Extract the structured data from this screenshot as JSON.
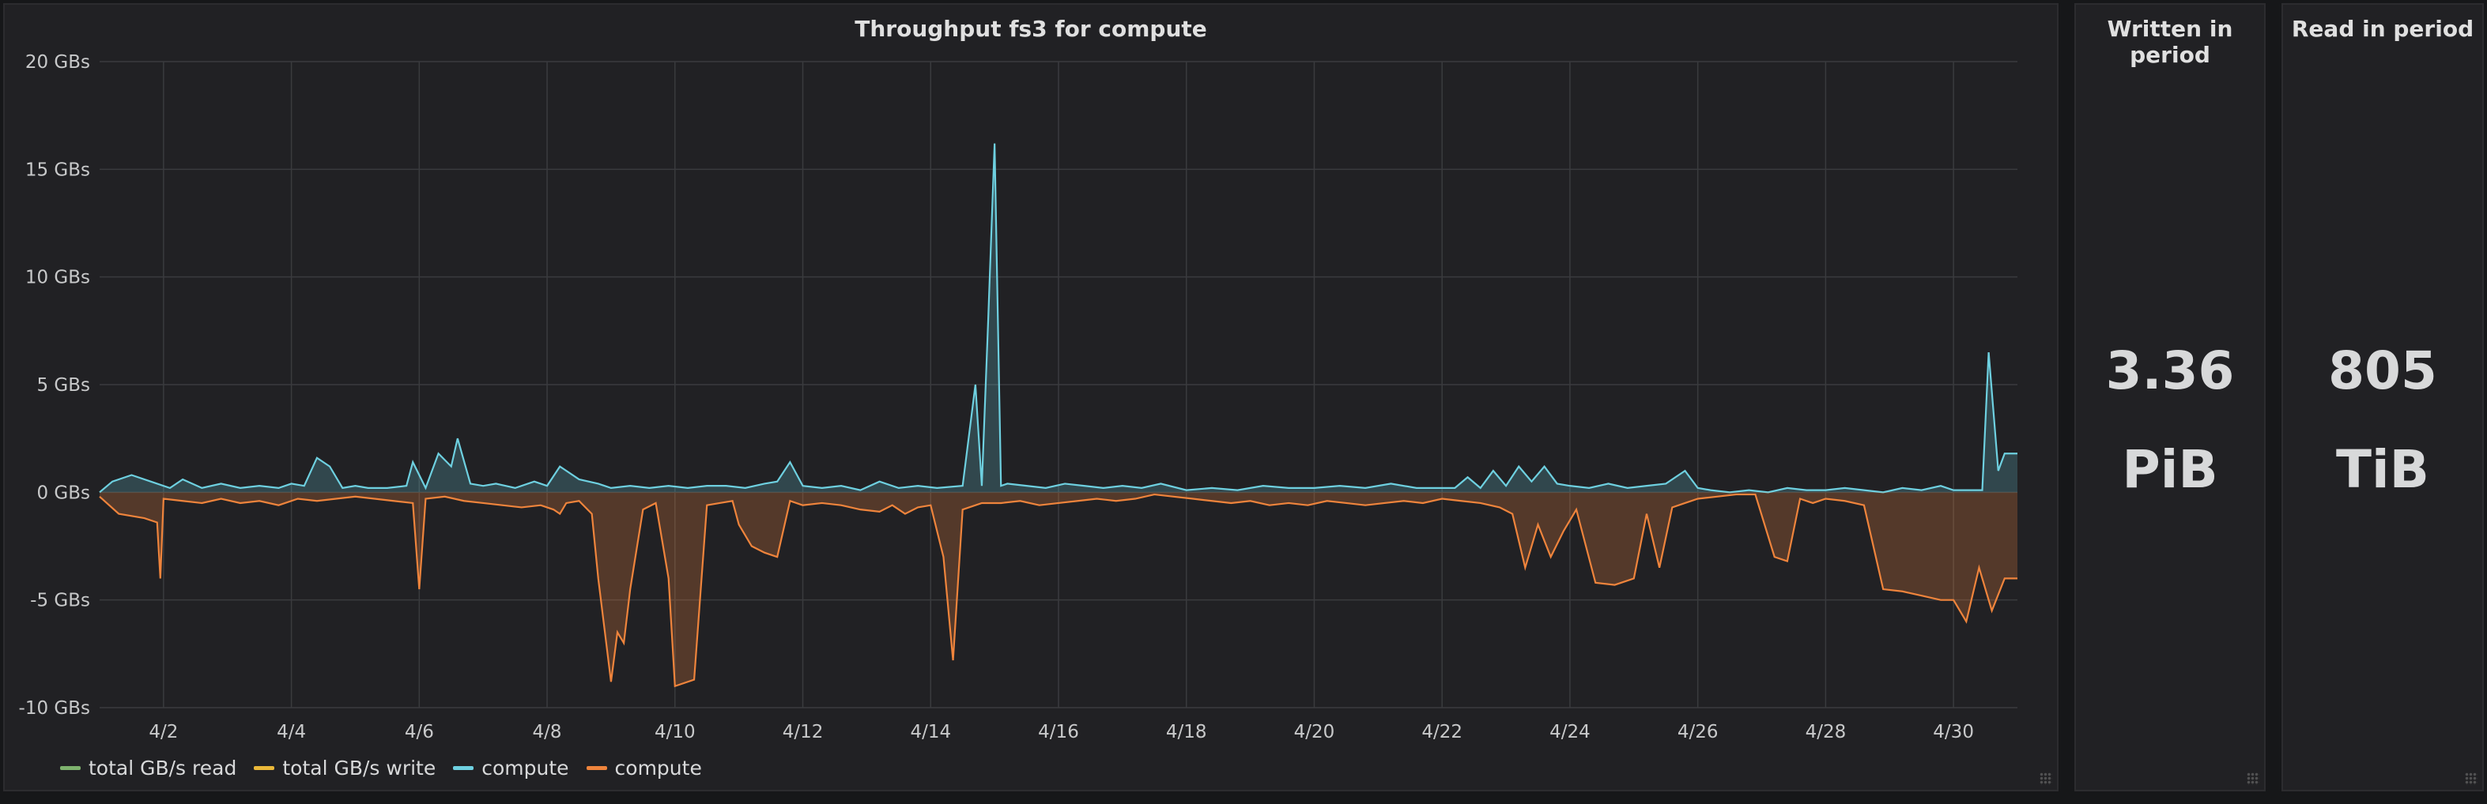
{
  "graph": {
    "title": "Throughput fs3 for compute"
  },
  "written": {
    "title": "Written in period",
    "value": "3.36",
    "unit": "PiB"
  },
  "read": {
    "title": "Read in period",
    "value": "805",
    "unit": "TiB"
  },
  "legend": [
    {
      "label": "total GB/s read",
      "color": "#7eb26d"
    },
    {
      "label": "total GB/s write",
      "color": "#eab839"
    },
    {
      "label": "compute",
      "color": "#6ed0e0"
    },
    {
      "label": "compute",
      "color": "#ef843c"
    }
  ],
  "chart_data": {
    "type": "area",
    "title": "Throughput fs3 for compute",
    "xlabel": "",
    "ylabel": "",
    "unit": "GBs",
    "xlim": [
      1,
      31
    ],
    "ylim": [
      -10,
      20
    ],
    "y_ticks": [
      -10,
      -5,
      0,
      5,
      10,
      15,
      20
    ],
    "y_tick_labels": [
      "-10 GBs",
      "-5 GBs",
      "0 GBs",
      "5 GBs",
      "10 GBs",
      "15 GBs",
      "20 GBs"
    ],
    "x_ticks": [
      2,
      4,
      6,
      8,
      10,
      12,
      14,
      16,
      18,
      20,
      22,
      24,
      26,
      28,
      30
    ],
    "x_tick_labels": [
      "4/2",
      "4/4",
      "4/6",
      "4/8",
      "4/10",
      "4/12",
      "4/14",
      "4/16",
      "4/18",
      "4/20",
      "4/22",
      "4/24",
      "4/26",
      "4/28",
      "4/30"
    ],
    "grid": true,
    "legend_position": "bottom-left",
    "series": [
      {
        "name": "compute",
        "color": "#6ed0e0",
        "x": [
          1.0,
          1.2,
          1.5,
          1.8,
          2.1,
          2.3,
          2.6,
          2.9,
          3.2,
          3.5,
          3.8,
          4.0,
          4.2,
          4.4,
          4.6,
          4.8,
          5.0,
          5.2,
          5.5,
          5.8,
          5.9,
          6.1,
          6.3,
          6.5,
          6.6,
          6.8,
          7.0,
          7.2,
          7.5,
          7.8,
          8.0,
          8.2,
          8.5,
          8.8,
          9.0,
          9.3,
          9.6,
          9.9,
          10.2,
          10.5,
          10.8,
          11.1,
          11.4,
          11.6,
          11.8,
          12.0,
          12.3,
          12.6,
          12.9,
          13.2,
          13.5,
          13.8,
          14.1,
          14.5,
          14.7,
          14.8,
          14.9,
          15.0,
          15.1,
          15.2,
          15.5,
          15.8,
          16.1,
          16.4,
          16.7,
          17.0,
          17.3,
          17.6,
          18.0,
          18.4,
          18.8,
          19.2,
          19.6,
          20.0,
          20.4,
          20.8,
          21.2,
          21.6,
          21.9,
          22.2,
          22.4,
          22.6,
          22.8,
          23.0,
          23.2,
          23.4,
          23.6,
          23.8,
          24.0,
          24.3,
          24.6,
          24.9,
          25.2,
          25.5,
          25.8,
          26.0,
          26.2,
          26.5,
          26.8,
          27.1,
          27.4,
          27.7,
          28.0,
          28.3,
          28.6,
          28.9,
          29.2,
          29.5,
          29.8,
          30.0,
          30.3,
          30.45,
          30.55,
          30.7,
          30.8,
          31.0
        ],
        "values": [
          0.0,
          0.5,
          0.8,
          0.5,
          0.2,
          0.6,
          0.2,
          0.4,
          0.2,
          0.3,
          0.2,
          0.4,
          0.3,
          1.6,
          1.2,
          0.2,
          0.3,
          0.2,
          0.2,
          0.3,
          1.4,
          0.2,
          1.8,
          1.2,
          2.5,
          0.4,
          0.3,
          0.4,
          0.2,
          0.5,
          0.3,
          1.2,
          0.6,
          0.4,
          0.2,
          0.3,
          0.2,
          0.3,
          0.2,
          0.3,
          0.3,
          0.2,
          0.4,
          0.5,
          1.4,
          0.3,
          0.2,
          0.3,
          0.1,
          0.5,
          0.2,
          0.3,
          0.2,
          0.3,
          5.0,
          0.3,
          8.0,
          16.2,
          0.3,
          0.4,
          0.3,
          0.2,
          0.4,
          0.3,
          0.2,
          0.3,
          0.2,
          0.4,
          0.1,
          0.2,
          0.1,
          0.3,
          0.2,
          0.2,
          0.3,
          0.2,
          0.4,
          0.2,
          0.2,
          0.2,
          0.7,
          0.2,
          1.0,
          0.3,
          1.2,
          0.5,
          1.2,
          0.4,
          0.3,
          0.2,
          0.4,
          0.2,
          0.3,
          0.4,
          1.0,
          0.2,
          0.1,
          0.0,
          0.1,
          0.0,
          0.2,
          0.1,
          0.1,
          0.2,
          0.1,
          0.0,
          0.2,
          0.1,
          0.3,
          0.1,
          0.1,
          0.1,
          6.5,
          1.0,
          1.8,
          1.8
        ]
      },
      {
        "name": "compute",
        "color": "#ef843c",
        "x": [
          1.0,
          1.3,
          1.7,
          1.9,
          1.95,
          2.0,
          2.3,
          2.6,
          2.9,
          3.2,
          3.5,
          3.8,
          4.1,
          4.4,
          4.7,
          5.0,
          5.3,
          5.6,
          5.9,
          6.0,
          6.1,
          6.4,
          6.7,
          7.0,
          7.3,
          7.6,
          7.9,
          8.1,
          8.2,
          8.3,
          8.5,
          8.7,
          8.8,
          9.0,
          9.1,
          9.2,
          9.3,
          9.5,
          9.7,
          9.9,
          10.0,
          10.3,
          10.5,
          10.7,
          10.9,
          11.0,
          11.2,
          11.4,
          11.6,
          11.8,
          12.0,
          12.3,
          12.6,
          12.9,
          13.2,
          13.4,
          13.6,
          13.8,
          14.0,
          14.2,
          14.35,
          14.5,
          14.8,
          15.1,
          15.4,
          15.7,
          16.0,
          16.3,
          16.6,
          16.9,
          17.2,
          17.5,
          17.8,
          18.1,
          18.4,
          18.7,
          19.0,
          19.3,
          19.6,
          19.9,
          20.2,
          20.5,
          20.8,
          21.1,
          21.4,
          21.7,
          22.0,
          22.3,
          22.6,
          22.9,
          23.1,
          23.3,
          23.5,
          23.7,
          23.9,
          24.1,
          24.4,
          24.7,
          25.0,
          25.2,
          25.4,
          25.6,
          25.8,
          26.0,
          26.3,
          26.6,
          26.9,
          27.2,
          27.4,
          27.6,
          27.8,
          28.0,
          28.3,
          28.6,
          28.9,
          29.2,
          29.5,
          29.8,
          30.0,
          30.2,
          30.4,
          30.6,
          30.8,
          31.0
        ],
        "values": [
          -0.2,
          -1.0,
          -1.2,
          -1.4,
          -4.0,
          -0.3,
          -0.4,
          -0.5,
          -0.3,
          -0.5,
          -0.4,
          -0.6,
          -0.3,
          -0.4,
          -0.3,
          -0.2,
          -0.3,
          -0.4,
          -0.5,
          -4.5,
          -0.3,
          -0.2,
          -0.4,
          -0.5,
          -0.6,
          -0.7,
          -0.6,
          -0.8,
          -1.0,
          -0.5,
          -0.4,
          -1.0,
          -4.0,
          -8.8,
          -6.5,
          -7.0,
          -4.5,
          -0.8,
          -0.5,
          -4.0,
          -9.0,
          -8.7,
          -0.6,
          -0.5,
          -0.4,
          -1.5,
          -2.5,
          -2.8,
          -3.0,
          -0.4,
          -0.6,
          -0.5,
          -0.6,
          -0.8,
          -0.9,
          -0.6,
          -1.0,
          -0.7,
          -0.6,
          -3.0,
          -7.8,
          -0.8,
          -0.5,
          -0.5,
          -0.4,
          -0.6,
          -0.5,
          -0.4,
          -0.3,
          -0.4,
          -0.3,
          -0.1,
          -0.2,
          -0.3,
          -0.4,
          -0.5,
          -0.4,
          -0.6,
          -0.5,
          -0.6,
          -0.4,
          -0.5,
          -0.6,
          -0.5,
          -0.4,
          -0.5,
          -0.3,
          -0.4,
          -0.5,
          -0.7,
          -1.0,
          -3.5,
          -1.5,
          -3.0,
          -1.8,
          -0.8,
          -4.2,
          -4.3,
          -4.0,
          -1.0,
          -3.5,
          -0.7,
          -0.5,
          -0.3,
          -0.2,
          -0.1,
          -0.1,
          -3.0,
          -3.2,
          -0.3,
          -0.5,
          -0.3,
          -0.4,
          -0.6,
          -4.5,
          -4.6,
          -4.8,
          -5.0,
          -5.0,
          -6.0,
          -3.5,
          -5.5,
          -4.0,
          -4.0
        ]
      }
    ]
  }
}
